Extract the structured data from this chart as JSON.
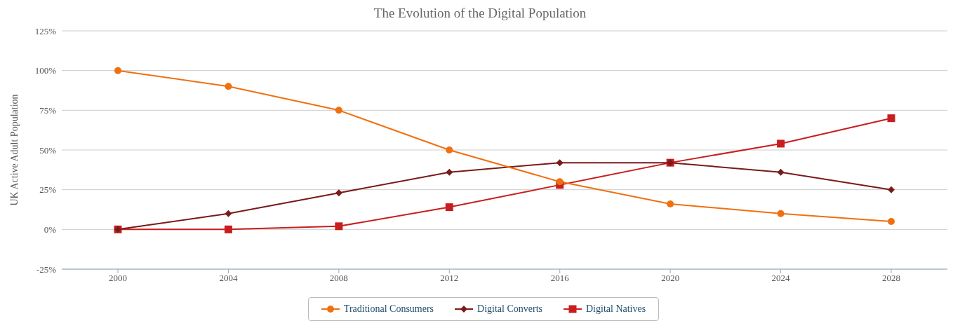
{
  "chart_data": {
    "type": "line",
    "title": "The Evolution of the Digital Population",
    "ylabel": "UK Active Adult Population",
    "categories": [
      "2000",
      "2004",
      "2008",
      "2012",
      "2016",
      "2020",
      "2024",
      "2028"
    ],
    "series": [
      {
        "name": "Traditional Consumers",
        "color": "#f07010",
        "marker": "circle",
        "values": [
          100,
          90,
          75,
          50,
          30,
          16,
          10,
          5
        ]
      },
      {
        "name": "Digital Converts",
        "color": "#7a1a1a",
        "marker": "diamond",
        "values": [
          0,
          10,
          23,
          36,
          42,
          42,
          36,
          25
        ]
      },
      {
        "name": "Digital Natives",
        "color": "#c81e1e",
        "marker": "square",
        "values": [
          0,
          0,
          2,
          14,
          28,
          42,
          54,
          70
        ]
      }
    ],
    "ylim": [
      -25,
      125
    ],
    "yticks": [
      {
        "value": -25,
        "label": "-25%"
      },
      {
        "value": 0,
        "label": "0%"
      },
      {
        "value": 25,
        "label": "25%"
      },
      {
        "value": 50,
        "label": "50%"
      },
      {
        "value": 75,
        "label": "75%"
      },
      {
        "value": 100,
        "label": "100%"
      },
      {
        "value": 125,
        "label": "125%"
      }
    ],
    "grid": "y",
    "legend": "bottom",
    "line_style": "solid"
  }
}
